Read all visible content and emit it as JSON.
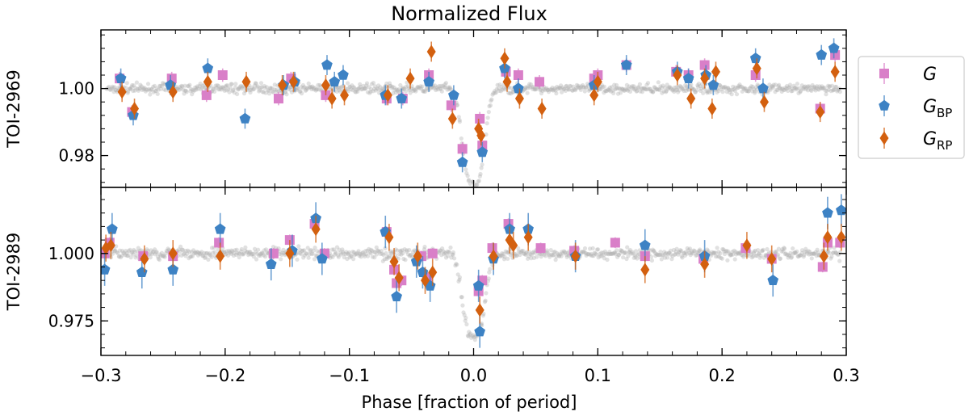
{
  "chart_data": {
    "type": "scatter",
    "title": "Normalized Flux",
    "xlabel": "Phase [fraction of period]",
    "xlim": [
      -0.3,
      0.3
    ],
    "xticks": [
      -0.3,
      -0.2,
      -0.1,
      0.0,
      0.1,
      0.2,
      0.3
    ],
    "xtick_labels": [
      "−0.3",
      "−0.2",
      "−0.1",
      "0.0",
      "0.1",
      "0.2",
      "0.3"
    ],
    "legend": {
      "placement": "right, outside top panel",
      "entries": [
        {
          "series": "G",
          "main": "G",
          "sub": "",
          "color": "#d97fc8",
          "marker": "square"
        },
        {
          "series": "GBP",
          "main": "G",
          "sub": "BP",
          "color": "#3d82c4",
          "marker": "pentagon"
        },
        {
          "series": "GRP",
          "main": "G",
          "sub": "RP",
          "color": "#d3600f",
          "marker": "diamond"
        }
      ]
    },
    "model_color": "#b0b0b0",
    "panels": [
      {
        "ylabel": "TOI-2969",
        "ylim": [
          0.9705,
          1.0175
        ],
        "yticks": [
          0.98,
          1.0
        ],
        "ytick_labels": [
          "0.98",
          "1.00"
        ],
        "model": {
          "depth": 0.029,
          "width": 0.0085,
          "scatter": 0.0012
        },
        "series": [
          {
            "name": "G",
            "points": [
              [
                -0.285,
                1.003,
                0.002
              ],
              [
                -0.275,
                0.993,
                0.002
              ],
              [
                -0.243,
                1.003,
                0.002
              ],
              [
                -0.215,
                0.998,
                0.002
              ],
              [
                -0.202,
                1.004,
                0.002
              ],
              [
                -0.157,
                0.997,
                0.002
              ],
              [
                -0.147,
                1.003,
                0.002
              ],
              [
                -0.119,
                0.998,
                0.002
              ],
              [
                -0.07,
                0.997,
                0.002
              ],
              [
                -0.057,
                0.997,
                0.002
              ],
              [
                -0.036,
                1.004,
                0.002
              ],
              [
                -0.018,
                0.995,
                0.002
              ],
              [
                -0.009,
                0.982,
                0.002
              ],
              [
                0.005,
                0.991,
                0.002
              ],
              [
                0.007,
                0.983,
                0.002
              ],
              [
                0.026,
                1.005,
                0.002
              ],
              [
                0.036,
                1.004,
                0.002
              ],
              [
                0.053,
                1.002,
                0.002
              ],
              [
                0.097,
                1.003,
                0.002
              ],
              [
                0.1,
                1.004,
                0.002
              ],
              [
                0.123,
                1.007,
                0.002
              ],
              [
                0.163,
                1.005,
                0.002
              ],
              [
                0.173,
                1.004,
                0.002
              ],
              [
                0.186,
                1.007,
                0.002
              ],
              [
                0.227,
                1.004,
                0.002
              ],
              [
                0.279,
                0.994,
                0.002
              ],
              [
                0.291,
                1.01,
                0.002
              ]
            ]
          },
          {
            "name": "GBP",
            "points": [
              [
                -0.284,
                1.003,
                0.003
              ],
              [
                -0.274,
                0.992,
                0.003
              ],
              [
                -0.244,
                1.001,
                0.003
              ],
              [
                -0.214,
                1.006,
                0.003
              ],
              [
                -0.184,
                0.991,
                0.003
              ],
              [
                -0.153,
                1.001,
                0.003
              ],
              [
                -0.144,
                1.002,
                0.003
              ],
              [
                -0.118,
                1.007,
                0.003
              ],
              [
                -0.112,
                1.002,
                0.003
              ],
              [
                -0.105,
                1.004,
                0.003
              ],
              [
                -0.071,
                0.998,
                0.003
              ],
              [
                -0.058,
                0.997,
                0.003
              ],
              [
                -0.036,
                1.002,
                0.003
              ],
              [
                -0.016,
                0.998,
                0.003
              ],
              [
                -0.009,
                0.978,
                0.003
              ],
              [
                0.007,
                0.981,
                0.003
              ],
              [
                0.025,
                1.006,
                0.003
              ],
              [
                0.036,
                1.0,
                0.003
              ],
              [
                0.097,
                1.001,
                0.003
              ],
              [
                0.123,
                1.007,
                0.003
              ],
              [
                0.164,
                1.005,
                0.003
              ],
              [
                0.173,
                1.003,
                0.003
              ],
              [
                0.187,
                1.004,
                0.003
              ],
              [
                0.193,
                1.001,
                0.003
              ],
              [
                0.227,
                1.009,
                0.003
              ],
              [
                0.233,
                1.0,
                0.003
              ],
              [
                0.28,
                1.01,
                0.003
              ],
              [
                0.29,
                1.012,
                0.003
              ]
            ]
          },
          {
            "name": "GRP",
            "points": [
              [
                -0.283,
                0.999,
                0.003
              ],
              [
                -0.273,
                0.994,
                0.003
              ],
              [
                -0.242,
                0.999,
                0.003
              ],
              [
                -0.214,
                1.002,
                0.003
              ],
              [
                -0.183,
                1.002,
                0.003
              ],
              [
                -0.154,
                1.001,
                0.003
              ],
              [
                -0.145,
                1.002,
                0.003
              ],
              [
                -0.119,
                1.001,
                0.003
              ],
              [
                -0.114,
                0.997,
                0.003
              ],
              [
                -0.104,
                0.998,
                0.003
              ],
              [
                -0.069,
                0.998,
                0.003
              ],
              [
                -0.051,
                1.003,
                0.003
              ],
              [
                -0.034,
                1.011,
                0.003
              ],
              [
                -0.017,
                0.991,
                0.003
              ],
              [
                0.004,
                0.988,
                0.003
              ],
              [
                0.006,
                0.986,
                0.003
              ],
              [
                0.025,
                1.009,
                0.003
              ],
              [
                0.027,
                1.002,
                0.003
              ],
              [
                0.037,
                0.997,
                0.003
              ],
              [
                0.055,
                0.994,
                0.003
              ],
              [
                0.097,
                0.998,
                0.003
              ],
              [
                0.1,
                1.002,
                0.003
              ],
              [
                0.164,
                1.004,
                0.003
              ],
              [
                0.175,
                0.997,
                0.003
              ],
              [
                0.186,
                1.003,
                0.003
              ],
              [
                0.192,
                0.994,
                0.003
              ],
              [
                0.195,
                1.005,
                0.003
              ],
              [
                0.228,
                1.006,
                0.003
              ],
              [
                0.234,
                0.996,
                0.003
              ],
              [
                0.279,
                0.993,
                0.003
              ],
              [
                0.291,
                1.005,
                0.003
              ]
            ]
          }
        ]
      },
      {
        "ylabel": "TOI-2989",
        "ylim": [
          0.9622,
          1.0245
        ],
        "yticks": [
          0.975,
          1.0
        ],
        "ytick_labels": [
          "0.975",
          "1.000"
        ],
        "model": {
          "depth": 0.031,
          "width": 0.0085,
          "scatter": 0.0018
        },
        "series": [
          {
            "name": "G",
            "points": [
              [
                -0.297,
                1.0,
                0.002
              ],
              [
                -0.293,
                1.004,
                0.002
              ],
              [
                -0.266,
                0.999,
                0.002
              ],
              [
                -0.242,
                0.999,
                0.002
              ],
              [
                -0.205,
                1.004,
                0.002
              ],
              [
                -0.161,
                1.0,
                0.002
              ],
              [
                -0.148,
                1.005,
                0.002
              ],
              [
                -0.128,
                1.011,
                0.002
              ],
              [
                -0.12,
                1.0,
                0.002
              ],
              [
                -0.07,
                1.008,
                0.002
              ],
              [
                -0.064,
                0.994,
                0.002
              ],
              [
                -0.062,
                0.989,
                0.002
              ],
              [
                -0.058,
                0.99,
                0.002
              ],
              [
                -0.042,
                0.999,
                0.002
              ],
              [
                -0.037,
                0.991,
                0.002
              ],
              [
                -0.033,
                1.0,
                0.002
              ],
              [
                0.004,
                0.986,
                0.002
              ],
              [
                0.007,
                0.99,
                0.002
              ],
              [
                0.015,
                1.002,
                0.002
              ],
              [
                0.028,
                1.011,
                0.002
              ],
              [
                0.054,
                1.002,
                0.002
              ],
              [
                0.081,
                1.001,
                0.002
              ],
              [
                0.114,
                1.004,
                0.002
              ],
              [
                0.138,
                0.999,
                0.002
              ],
              [
                0.185,
                0.998,
                0.002
              ],
              [
                0.219,
                1.002,
                0.002
              ],
              [
                0.24,
                0.998,
                0.002
              ],
              [
                0.281,
                0.995,
                0.002
              ],
              [
                0.285,
                1.004,
                0.002
              ],
              [
                0.295,
                1.004,
                0.002
              ]
            ]
          },
          {
            "name": "GBP",
            "points": [
              [
                -0.297,
                0.994,
                0.006
              ],
              [
                -0.291,
                1.009,
                0.006
              ],
              [
                -0.267,
                0.993,
                0.006
              ],
              [
                -0.242,
                0.994,
                0.006
              ],
              [
                -0.204,
                1.009,
                0.006
              ],
              [
                -0.163,
                0.996,
                0.006
              ],
              [
                -0.146,
                1.001,
                0.006
              ],
              [
                -0.127,
                1.013,
                0.006
              ],
              [
                -0.122,
                0.998,
                0.006
              ],
              [
                -0.071,
                1.008,
                0.006
              ],
              [
                -0.062,
                0.984,
                0.006
              ],
              [
                -0.046,
                0.997,
                0.006
              ],
              [
                -0.041,
                0.993,
                0.006
              ],
              [
                -0.035,
                0.988,
                0.006
              ],
              [
                0.004,
                0.988,
                0.006
              ],
              [
                0.005,
                0.971,
                0.006
              ],
              [
                0.016,
                0.998,
                0.006
              ],
              [
                0.029,
                1.009,
                0.006
              ],
              [
                0.044,
                1.009,
                0.006
              ],
              [
                0.082,
                0.999,
                0.006
              ],
              [
                0.138,
                1.003,
                0.006
              ],
              [
                0.186,
                0.999,
                0.006
              ],
              [
                0.241,
                0.99,
                0.006
              ],
              [
                0.285,
                1.015,
                0.006
              ],
              [
                0.296,
                1.016,
                0.006
              ]
            ]
          },
          {
            "name": "GRP",
            "points": [
              [
                -0.296,
                1.002,
                0.005
              ],
              [
                -0.292,
                1.003,
                0.005
              ],
              [
                -0.265,
                0.998,
                0.005
              ],
              [
                -0.242,
                1.0,
                0.005
              ],
              [
                -0.204,
                0.999,
                0.005
              ],
              [
                -0.148,
                1.0,
                0.005
              ],
              [
                -0.127,
                1.009,
                0.005
              ],
              [
                -0.068,
                1.006,
                0.005
              ],
              [
                -0.064,
                0.997,
                0.005
              ],
              [
                -0.06,
                0.991,
                0.005
              ],
              [
                -0.045,
                0.999,
                0.005
              ],
              [
                -0.039,
                0.99,
                0.005
              ],
              [
                -0.033,
                0.993,
                0.005
              ],
              [
                0.005,
                0.979,
                0.005
              ],
              [
                0.016,
                0.999,
                0.005
              ],
              [
                0.029,
                1.005,
                0.005
              ],
              [
                0.032,
                1.003,
                0.005
              ],
              [
                0.044,
                1.006,
                0.005
              ],
              [
                0.082,
                0.999,
                0.005
              ],
              [
                0.138,
                0.994,
                0.005
              ],
              [
                0.186,
                0.996,
                0.005
              ],
              [
                0.22,
                1.003,
                0.005
              ],
              [
                0.24,
                0.998,
                0.005
              ],
              [
                0.282,
                0.999,
                0.005
              ],
              [
                0.285,
                1.006,
                0.005
              ],
              [
                0.296,
                1.006,
                0.005
              ]
            ]
          }
        ]
      }
    ]
  }
}
